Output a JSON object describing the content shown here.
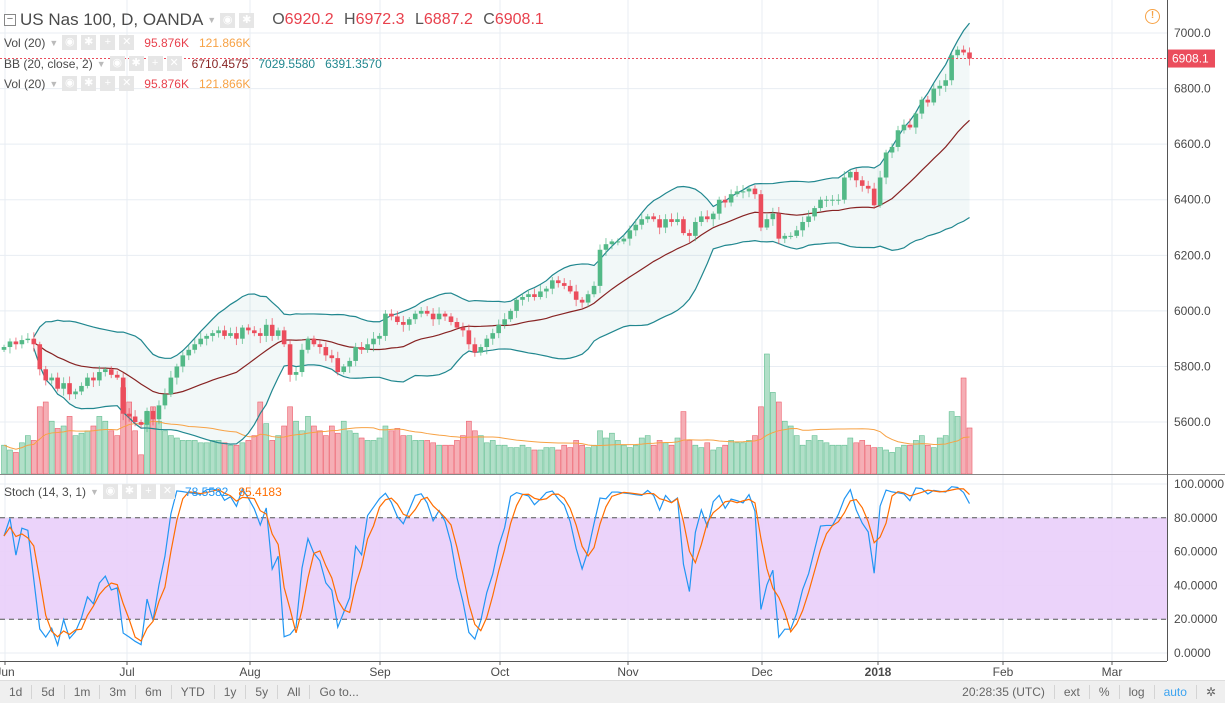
{
  "header": {
    "symbol": "US Nas 100, D, OANDA",
    "o_label": "O",
    "o": "6920.2",
    "h_label": "H",
    "h": "6972.3",
    "l_label": "L",
    "l": "6887.2",
    "c_label": "C",
    "c": "6908.1"
  },
  "indicators": {
    "vol1": {
      "name": "Vol (20)",
      "v1": "95.876K",
      "v2": "121.866K"
    },
    "bb": {
      "name": "BB (20, close, 2)",
      "basis": "6710.4575",
      "upper": "7029.5580",
      "lower": "6391.3570"
    },
    "vol2": {
      "name": "Vol (20)",
      "v1": "95.876K",
      "v2": "121.866K"
    },
    "stoch": {
      "name": "Stoch (14, 3, 1)",
      "k": "78.5582",
      "d": "85.4183"
    }
  },
  "price_label": "6908.1",
  "bottom_bar": {
    "ranges": [
      "1d",
      "5d",
      "1m",
      "3m",
      "6m",
      "YTD",
      "1y",
      "5y",
      "All"
    ],
    "goto": "Go to...",
    "time": "20:28:35 (UTC)",
    "ext": "ext",
    "pct": "%",
    "log": "log",
    "auto": "auto"
  },
  "colors": {
    "up": "#53b987",
    "down": "#eb4d5c",
    "bb_band": "#21878f",
    "bb_basis": "#872323",
    "vol_ma": "#f7a245",
    "stoch_k": "#2196f3",
    "stoch_d": "#ff6d00",
    "stoch_fill": "#e9cefa"
  },
  "chart_data": {
    "type": "candlestick",
    "x_ticks": [
      "Jun",
      "Jul",
      "Aug",
      "Sep",
      "Oct",
      "Nov",
      "Dec",
      "2018",
      "Feb",
      "Mar"
    ],
    "price_ticks": [
      "7000.0",
      "6800.0",
      "6600.0",
      "6400.0",
      "6200.0",
      "6000.0",
      "5800.0",
      "5600.0"
    ],
    "stoch_ticks": [
      "100.0000",
      "80.0000",
      "60.0000",
      "40.0000",
      "20.0000",
      "0.0000"
    ],
    "price_range": [
      5480,
      7120
    ],
    "close": [
      5870,
      5890,
      5880,
      5895,
      5900,
      5880,
      5790,
      5750,
      5760,
      5720,
      5740,
      5700,
      5710,
      5730,
      5760,
      5750,
      5780,
      5790,
      5770,
      5760,
      5630,
      5620,
      5600,
      5590,
      5640,
      5610,
      5660,
      5700,
      5760,
      5800,
      5840,
      5860,
      5880,
      5900,
      5910,
      5920,
      5930,
      5910,
      5920,
      5900,
      5940,
      5930,
      5920,
      5910,
      5950,
      5910,
      5930,
      5880,
      5770,
      5780,
      5860,
      5900,
      5880,
      5870,
      5840,
      5830,
      5780,
      5800,
      5820,
      5870,
      5860,
      5880,
      5900,
      5910,
      5990,
      5980,
      5960,
      5950,
      5970,
      5990,
      6000,
      5990,
      5970,
      5990,
      5980,
      5960,
      5940,
      5930,
      5880,
      5850,
      5870,
      5900,
      5920,
      5950,
      5970,
      6000,
      6040,
      6050,
      6060,
      6050,
      6070,
      6080,
      6110,
      6100,
      6090,
      6070,
      6040,
      6030,
      6060,
      6090,
      6220,
      6240,
      6250,
      6250,
      6260,
      6290,
      6310,
      6330,
      6340,
      6330,
      6300,
      6330,
      6320,
      6330,
      6280,
      6270,
      6320,
      6340,
      6330,
      6350,
      6400,
      6390,
      6420,
      6430,
      6430,
      6440,
      6420,
      6300,
      6330,
      6350,
      6260,
      6270,
      6270,
      6290,
      6320,
      6340,
      6370,
      6400,
      6400,
      6400,
      6400,
      6480,
      6500,
      6470,
      6450,
      6440,
      6380,
      6480,
      6570,
      6590,
      6650,
      6670,
      6660,
      6710,
      6760,
      6750,
      6800,
      6810,
      6830,
      6920,
      6940,
      6930,
      6908.1
    ],
    "volume_k": [
      60,
      50,
      45,
      65,
      80,
      70,
      140,
      150,
      110,
      95,
      100,
      120,
      80,
      85,
      90,
      100,
      120,
      110,
      90,
      80,
      180,
      150,
      90,
      40,
      130,
      140,
      110,
      90,
      80,
      75,
      70,
      70,
      70,
      65,
      65,
      70,
      70,
      65,
      60,
      60,
      65,
      70,
      80,
      150,
      105,
      70,
      80,
      100,
      140,
      110,
      90,
      120,
      100,
      90,
      80,
      100,
      85,
      110,
      90,
      85,
      75,
      70,
      70,
      75,
      100,
      90,
      95,
      80,
      80,
      70,
      70,
      70,
      65,
      60,
      60,
      60,
      70,
      80,
      110,
      90,
      80,
      65,
      70,
      60,
      60,
      55,
      55,
      60,
      55,
      50,
      50,
      55,
      55,
      50,
      60,
      55,
      70,
      60,
      55,
      60,
      90,
      75,
      85,
      70,
      60,
      55,
      60,
      75,
      80,
      60,
      70,
      65,
      60,
      75,
      130,
      70,
      60,
      55,
      65,
      50,
      55,
      60,
      70,
      65,
      65,
      70,
      80,
      140,
      250,
      170,
      150,
      110,
      100,
      80,
      60,
      70,
      80,
      70,
      65,
      60,
      60,
      60,
      75,
      65,
      70,
      60,
      55,
      55,
      50,
      45,
      55,
      60,
      60,
      70,
      80,
      60,
      55,
      75,
      80,
      130,
      120,
      200,
      95.876
    ],
    "stoch_bands": [
      20,
      80
    ]
  }
}
